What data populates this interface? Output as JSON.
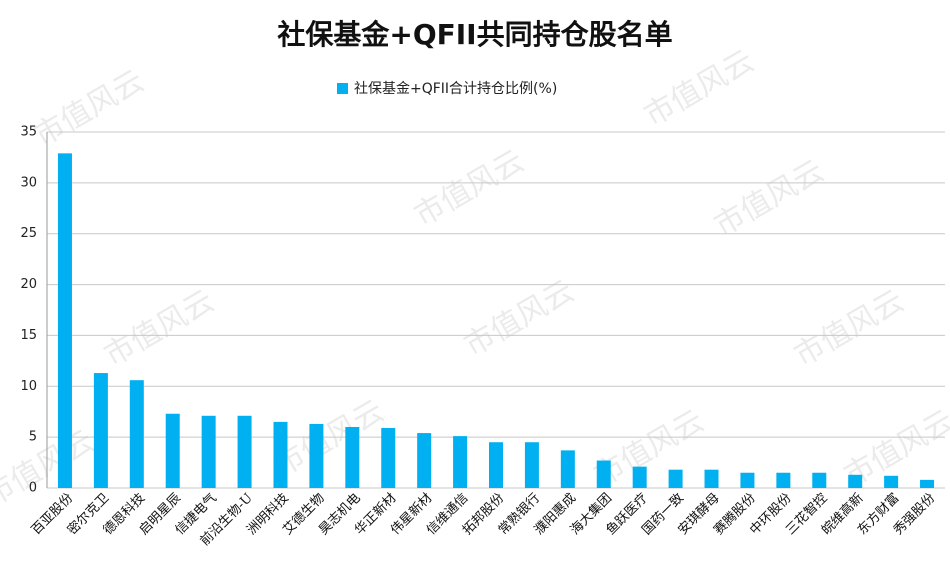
{
  "chart_data": {
    "type": "bar",
    "title": "社保基金+QFII共同持仓股名单",
    "watermark": "市值风云",
    "series": [
      {
        "name": "社保基金+QFII合计持仓比例(%)",
        "color": "#00b0f0",
        "values": [
          32.9,
          11.3,
          10.6,
          7.3,
          7.1,
          7.1,
          6.5,
          6.3,
          6.0,
          5.9,
          5.4,
          5.1,
          4.5,
          4.5,
          3.7,
          2.7,
          2.1,
          1.8,
          1.8,
          1.5,
          1.5,
          1.5,
          1.3,
          1.2,
          0.8
        ]
      }
    ],
    "categories": [
      "百亚股份",
      "密尔克卫",
      "德恩科技",
      "启明星辰",
      "信捷电气",
      "前沿生物-U",
      "洲明科技",
      "艾德生物",
      "昊志机电",
      "华正新材",
      "伟星新材",
      "信维通信",
      "拓邦股份",
      "常熟银行",
      "濮阳惠成",
      "海大集团",
      "鱼跃医疗",
      "国药一致",
      "安琪酵母",
      "赛腾股份",
      "中环股份",
      "三花智控",
      "皖维高新",
      "东方财富",
      "秀强股份"
    ],
    "ylim": [
      0,
      35
    ],
    "yticks": [
      0,
      5,
      10,
      15,
      20,
      25,
      30,
      35
    ],
    "grid": true
  }
}
